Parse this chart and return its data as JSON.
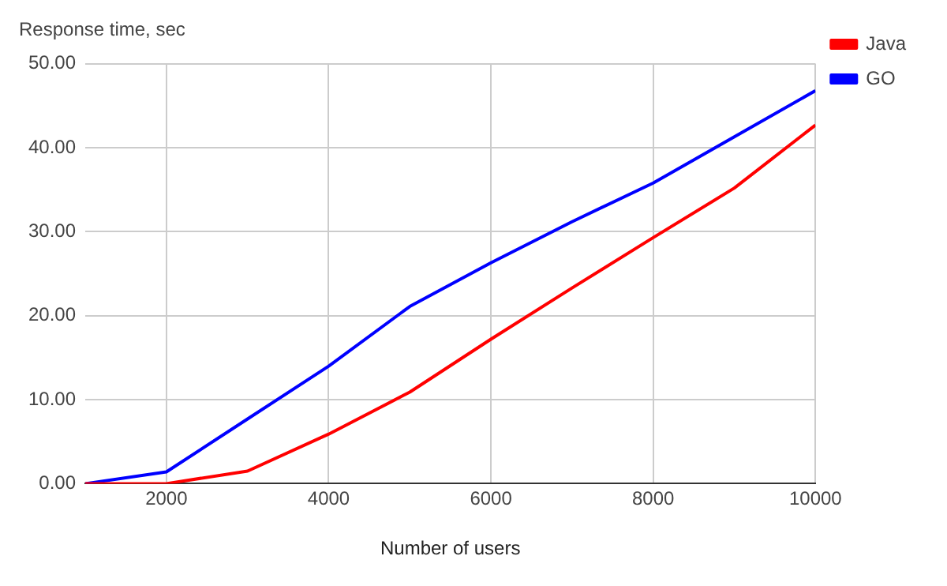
{
  "chart_data": {
    "type": "line",
    "title": "Response time, sec",
    "xlabel": "Number of users",
    "x": [
      1000,
      2000,
      3000,
      4000,
      5000,
      6000,
      7000,
      8000,
      9000,
      10000
    ],
    "series": [
      {
        "name": "Java",
        "color": "#ff0000",
        "values": [
          0,
          0,
          1.5,
          5.9,
          10.9,
          17.2,
          23.3,
          29.3,
          35.2,
          42.7
        ]
      },
      {
        "name": "GO",
        "color": "#0000ff",
        "values": [
          0,
          1.4,
          7.7,
          14,
          21.1,
          26.3,
          31.2,
          35.8,
          41.3,
          46.8
        ]
      }
    ],
    "xlim": [
      1000,
      10000
    ],
    "xticks": [
      2000,
      4000,
      6000,
      8000,
      10000
    ],
    "ylim": [
      0,
      50
    ],
    "yticks": [
      {
        "value": 0,
        "label": "0.00"
      },
      {
        "value": 10,
        "label": "10.00"
      },
      {
        "value": 20,
        "label": "20.00"
      },
      {
        "value": 30,
        "label": "30.00"
      },
      {
        "value": 40,
        "label": "40.00"
      },
      {
        "value": 50,
        "label": "50.00"
      }
    ],
    "grid": true,
    "legend": "top right",
    "marker": "none",
    "line_style": "solid"
  }
}
